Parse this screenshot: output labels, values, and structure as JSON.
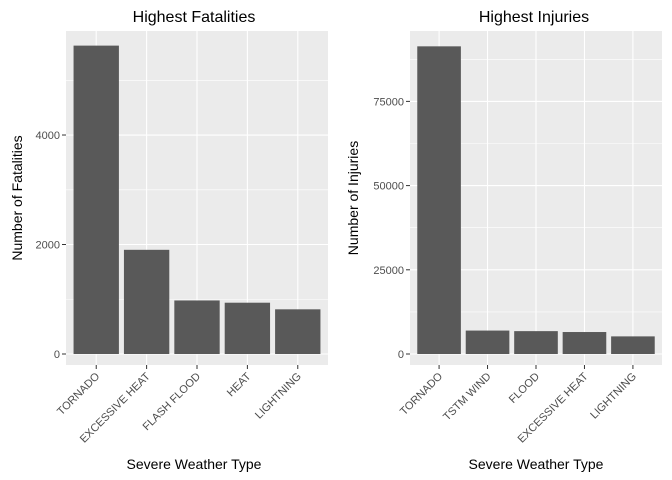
{
  "chart_data": [
    {
      "type": "bar",
      "title": "Highest Fatalities",
      "xlabel": "Severe Weather Type",
      "ylabel": "Number of Fatalities",
      "categories": [
        "TORNADO",
        "EXCESSIVE HEAT",
        "FLASH FLOOD",
        "HEAT",
        "LIGHTNING"
      ],
      "values": [
        5633,
        1903,
        978,
        937,
        816
      ],
      "ylim": [
        0,
        5900
      ],
      "yticks": [
        0,
        2000,
        4000
      ],
      "ytick_labels": [
        "0",
        "2000",
        "4000"
      ],
      "grid": true,
      "bar_color": "#595959",
      "panel_color": "#ebebeb",
      "grid_color": "#ffffff"
    },
    {
      "type": "bar",
      "title": "Highest Injuries",
      "xlabel": "Severe Weather Type",
      "ylabel": "Number of Injuries",
      "categories": [
        "TORNADO",
        "TSTM WIND",
        "FLOOD",
        "EXCESSIVE HEAT",
        "LIGHTNING"
      ],
      "values": [
        91346,
        6957,
        6789,
        6525,
        5230
      ],
      "ylim": [
        0,
        95900
      ],
      "yticks": [
        0,
        25000,
        50000,
        75000
      ],
      "ytick_labels": [
        "0",
        "25000",
        "50000",
        "75000"
      ],
      "grid": true,
      "bar_color": "#595959",
      "panel_color": "#ebebeb",
      "grid_color": "#ffffff"
    }
  ]
}
